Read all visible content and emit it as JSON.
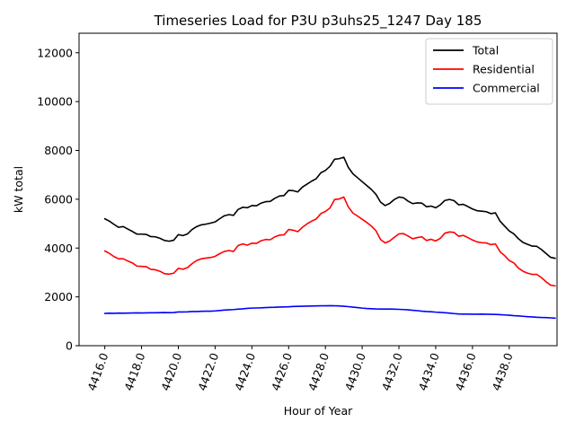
{
  "chart_data": {
    "type": "line",
    "title": "Timeseries Load for P3U p3uhs25_1247  Day 185",
    "xlabel": "Hour of Year",
    "ylabel": "kW total",
    "xlim": [
      4414.6,
      4440.6
    ],
    "ylim": [
      0,
      12800
    ],
    "x_start": 4416.0,
    "x_step": 0.25,
    "xticks": [
      4416,
      4418,
      4420,
      4422,
      4424,
      4426,
      4428,
      4430,
      4432,
      4434,
      4436,
      4438
    ],
    "xtick_labels": [
      "4416.0",
      "4418.0",
      "4420.0",
      "4422.0",
      "4424.0",
      "4426.0",
      "4428.0",
      "4430.0",
      "4432.0",
      "4434.0",
      "4436.0",
      "4438.0"
    ],
    "yticks": [
      0,
      2000,
      4000,
      6000,
      8000,
      10000,
      12000
    ],
    "ytick_labels": [
      "0",
      "2000",
      "4000",
      "6000",
      "8000",
      "10000",
      "12000"
    ],
    "grid": false,
    "legend_position": "top-right",
    "series": [
      {
        "name": "Total",
        "color": "#000000",
        "values": [
          5200,
          5100,
          4970,
          4850,
          4880,
          4780,
          4680,
          4570,
          4570,
          4560,
          4470,
          4460,
          4400,
          4310,
          4280,
          4320,
          4550,
          4510,
          4580,
          4760,
          4880,
          4950,
          4980,
          5020,
          5070,
          5200,
          5320,
          5370,
          5340,
          5580,
          5670,
          5650,
          5740,
          5730,
          5840,
          5900,
          5910,
          6040,
          6130,
          6150,
          6360,
          6350,
          6300,
          6500,
          6620,
          6740,
          6840,
          7080,
          7180,
          7350,
          7640,
          7660,
          7720,
          7300,
          7040,
          6880,
          6720,
          6560,
          6400,
          6200,
          5880,
          5740,
          5830,
          5990,
          6090,
          6060,
          5920,
          5820,
          5850,
          5840,
          5690,
          5720,
          5650,
          5770,
          5950,
          5990,
          5940,
          5770,
          5790,
          5700,
          5600,
          5530,
          5510,
          5490,
          5410,
          5440,
          5100,
          4900,
          4700,
          4580,
          4380,
          4230,
          4150,
          4080,
          4070,
          3940,
          3780,
          3620,
          3580
        ]
      },
      {
        "name": "Residential",
        "color": "#ff0000",
        "values": [
          3880,
          3780,
          3650,
          3560,
          3560,
          3470,
          3390,
          3260,
          3250,
          3240,
          3130,
          3110,
          3050,
          2950,
          2930,
          2970,
          3170,
          3130,
          3200,
          3360,
          3490,
          3560,
          3590,
          3610,
          3660,
          3770,
          3860,
          3900,
          3860,
          4100,
          4170,
          4120,
          4200,
          4190,
          4300,
          4350,
          4340,
          4460,
          4530,
          4540,
          4760,
          4730,
          4670,
          4850,
          4990,
          5100,
          5190,
          5410,
          5500,
          5640,
          5990,
          6010,
          6090,
          5680,
          5430,
          5310,
          5180,
          5050,
          4900,
          4710,
          4350,
          4210,
          4290,
          4440,
          4580,
          4590,
          4490,
          4380,
          4430,
          4460,
          4310,
          4360,
          4290,
          4400,
          4610,
          4660,
          4640,
          4480,
          4520,
          4430,
          4330,
          4250,
          4220,
          4210,
          4140,
          4170,
          3850,
          3690,
          3490,
          3390,
          3180,
          3050,
          2970,
          2920,
          2920,
          2790,
          2620,
          2480,
          2450
        ]
      },
      {
        "name": "Commercial",
        "color": "#0000ff",
        "values": [
          1320,
          1330,
          1325,
          1335,
          1330,
          1335,
          1340,
          1345,
          1340,
          1345,
          1350,
          1350,
          1355,
          1360,
          1355,
          1360,
          1380,
          1380,
          1385,
          1400,
          1400,
          1410,
          1415,
          1415,
          1425,
          1440,
          1460,
          1470,
          1480,
          1495,
          1510,
          1530,
          1540,
          1545,
          1550,
          1560,
          1570,
          1575,
          1585,
          1590,
          1595,
          1605,
          1610,
          1615,
          1620,
          1625,
          1630,
          1635,
          1635,
          1640,
          1635,
          1630,
          1615,
          1600,
          1580,
          1560,
          1540,
          1525,
          1515,
          1505,
          1500,
          1500,
          1500,
          1495,
          1490,
          1480,
          1470,
          1450,
          1435,
          1415,
          1400,
          1390,
          1375,
          1365,
          1350,
          1335,
          1315,
          1300,
          1295,
          1295,
          1290,
          1290,
          1295,
          1290,
          1285,
          1280,
          1270,
          1260,
          1250,
          1230,
          1220,
          1205,
          1190,
          1180,
          1165,
          1155,
          1150,
          1140,
          1130
        ]
      }
    ]
  }
}
